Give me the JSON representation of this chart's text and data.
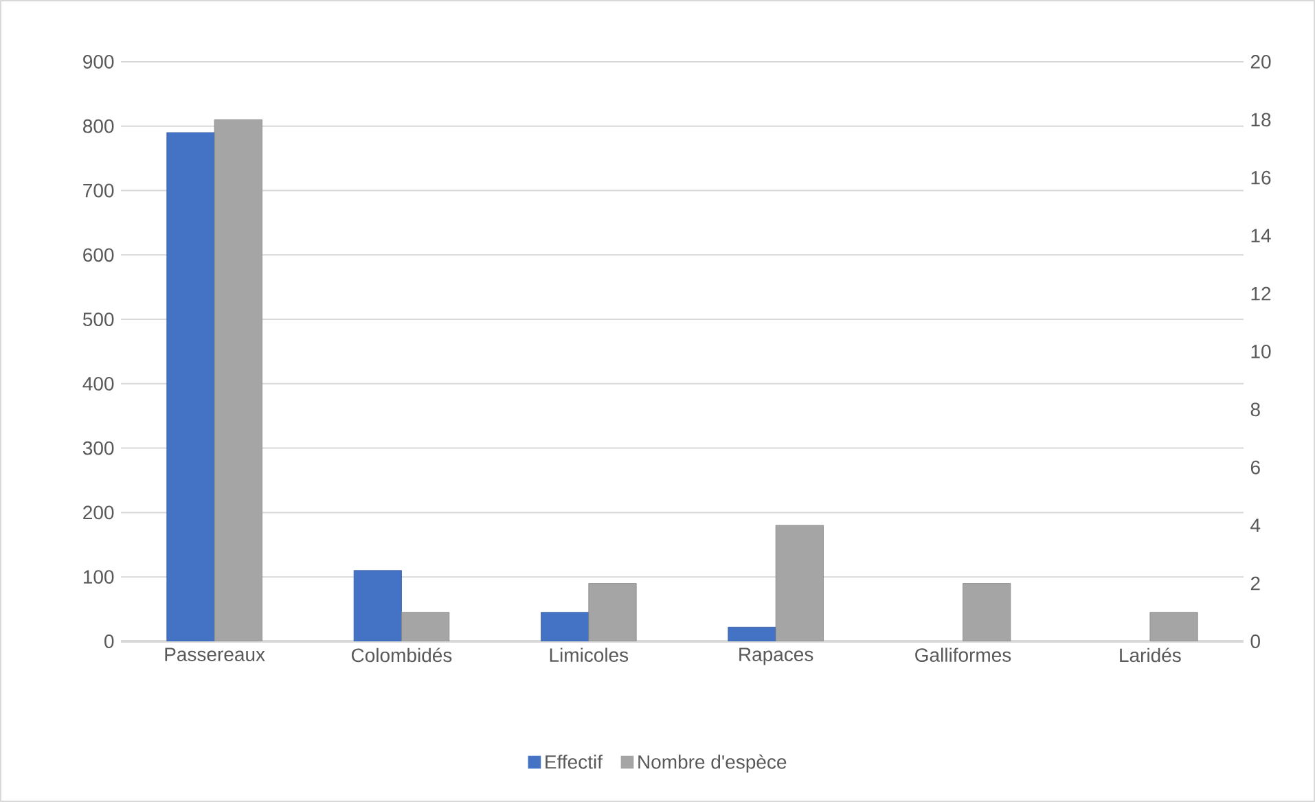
{
  "chart_data": {
    "type": "bar",
    "categories": [
      "Passereaux",
      "Colombidés",
      "Limicoles",
      "Rapaces",
      "Galliformes",
      "Laridés"
    ],
    "series": [
      {
        "name": "Effectif",
        "color": "#4472c4",
        "values": [
          790,
          110,
          45,
          22,
          null,
          null
        ]
      },
      {
        "name": "Nombre d'espèce",
        "color": "#a5a5a5",
        "axis": "y2",
        "values": [
          18,
          1,
          2,
          4,
          2,
          1
        ]
      }
    ],
    "ylim": [
      0,
      900
    ],
    "yticks": [
      0,
      100,
      200,
      300,
      400,
      500,
      600,
      700,
      800,
      900
    ],
    "y2lim": [
      0,
      20
    ],
    "y2ticks": [
      0,
      2,
      4,
      6,
      8,
      10,
      12,
      14,
      16,
      18,
      20
    ],
    "grid": "y",
    "legend": "bottom"
  }
}
